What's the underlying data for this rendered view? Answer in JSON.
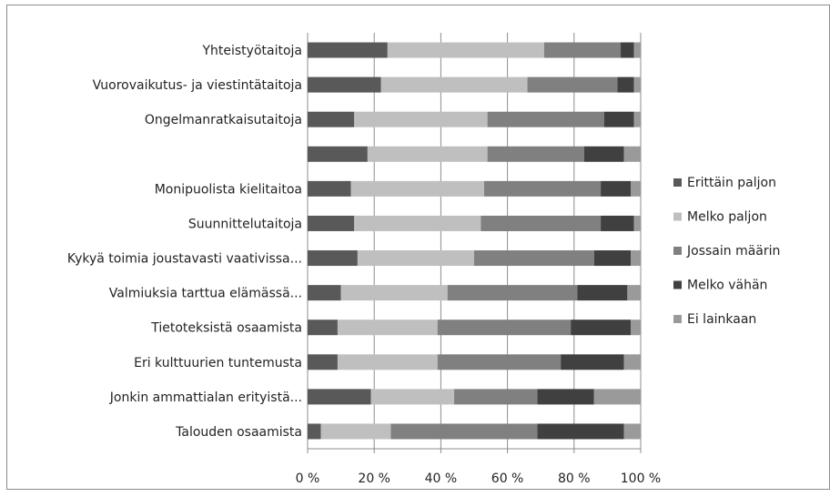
{
  "chart_data": {
    "type": "bar",
    "orientation": "horizontal",
    "stacked": "percent",
    "categories": [
      "Yhteistyötaitoja",
      "Vuorovaikutus- ja viestintätaitoja",
      "Ongelmanratkaisutaitoja",
      "",
      "Monipuolista kielitaitoa",
      "Suunnittelutaitoja",
      "Kykyä toimia joustavasti vaativissa...",
      "Valmiuksia tarttua elämässä...",
      "Tietoteksistä osaamista",
      "Eri kulttuurien tuntemusta",
      "Jonkin ammattialan erityistä...",
      "Talouden osaamista"
    ],
    "series": [
      {
        "name": "Erittäin paljon",
        "color": "#595959",
        "values": [
          24,
          22,
          14,
          18,
          13,
          14,
          15,
          10,
          9,
          9,
          19,
          4
        ]
      },
      {
        "name": "Melko paljon",
        "color": "#bfbfbf",
        "values": [
          47,
          44,
          40,
          36,
          40,
          38,
          35,
          32,
          30,
          30,
          25,
          21
        ]
      },
      {
        "name": "Jossain määrin",
        "color": "#808080",
        "values": [
          23,
          27,
          35,
          29,
          35,
          36,
          36,
          39,
          40,
          37,
          25,
          44
        ]
      },
      {
        "name": "Melko vähän",
        "color": "#404040",
        "values": [
          4,
          5,
          9,
          12,
          9,
          10,
          11,
          15,
          18,
          19,
          17,
          26
        ]
      },
      {
        "name": "Ei lainkaan",
        "color": "#9a9a9a",
        "values": [
          2,
          2,
          2,
          5,
          3,
          2,
          3,
          4,
          3,
          5,
          14,
          5
        ]
      }
    ],
    "xticks": [
      "0 %",
      "20 %",
      "40 %",
      "60 %",
      "80 %",
      "100 %"
    ],
    "xlim": [
      0,
      100
    ],
    "grid": true,
    "legend": "right"
  }
}
